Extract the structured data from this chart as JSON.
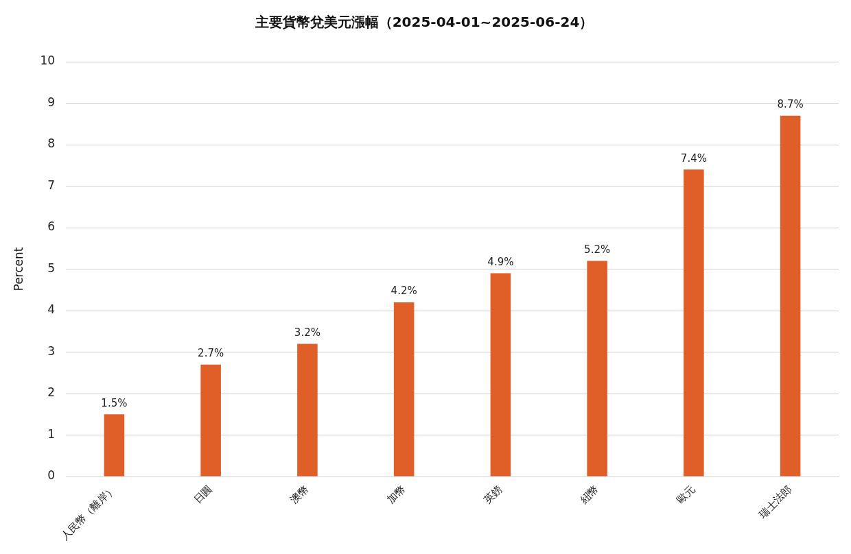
{
  "chart_data": {
    "type": "bar",
    "title": "主要貨幣兌美元漲幅（2025-04-01~2025-06-24）",
    "ylabel": "Percent",
    "categories": [
      "人民幣（離岸）",
      "日圓",
      "澳幣",
      "加幣",
      "英鎊",
      "紐幣",
      "歐元",
      "瑞士法郎"
    ],
    "values": [
      1.5,
      2.7,
      3.2,
      4.2,
      4.9,
      5.2,
      7.4,
      8.7
    ],
    "value_labels": [
      "1.5%",
      "2.7%",
      "3.2%",
      "4.2%",
      "4.9%",
      "5.2%",
      "7.4%",
      "8.7%"
    ],
    "color": "#e05f28",
    "ylim": [
      0,
      10
    ],
    "yticks": [
      0,
      1,
      2,
      3,
      4,
      5,
      6,
      7,
      8,
      9,
      10
    ],
    "grid": "y",
    "legend": false
  }
}
